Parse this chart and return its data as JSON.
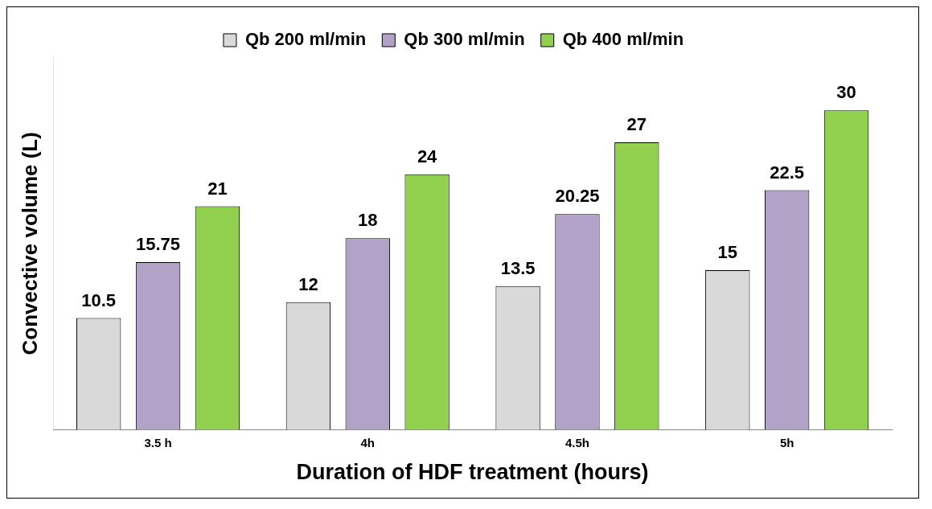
{
  "chart_data": {
    "type": "bar",
    "xlabel": "Duration of HDF treatment (hours)",
    "ylabel": "Convective volume (L)",
    "categories": [
      "3.5 h",
      "4h",
      "4.5h",
      "5h"
    ],
    "series": [
      {
        "name": "Qb 200 ml/min",
        "color": "#d9d9d9",
        "values": [
          10.5,
          12,
          13.5,
          15
        ]
      },
      {
        "name": "Qb 300 ml/min",
        "color": "#b3a2c7",
        "values": [
          15.75,
          18,
          20.25,
          22.5
        ]
      },
      {
        "name": "Qb 400 ml/min",
        "color": "#92d050",
        "values": [
          21,
          24,
          27,
          30
        ]
      }
    ],
    "data_labels": true,
    "legend": "top",
    "grid": false,
    "relative": false
  }
}
